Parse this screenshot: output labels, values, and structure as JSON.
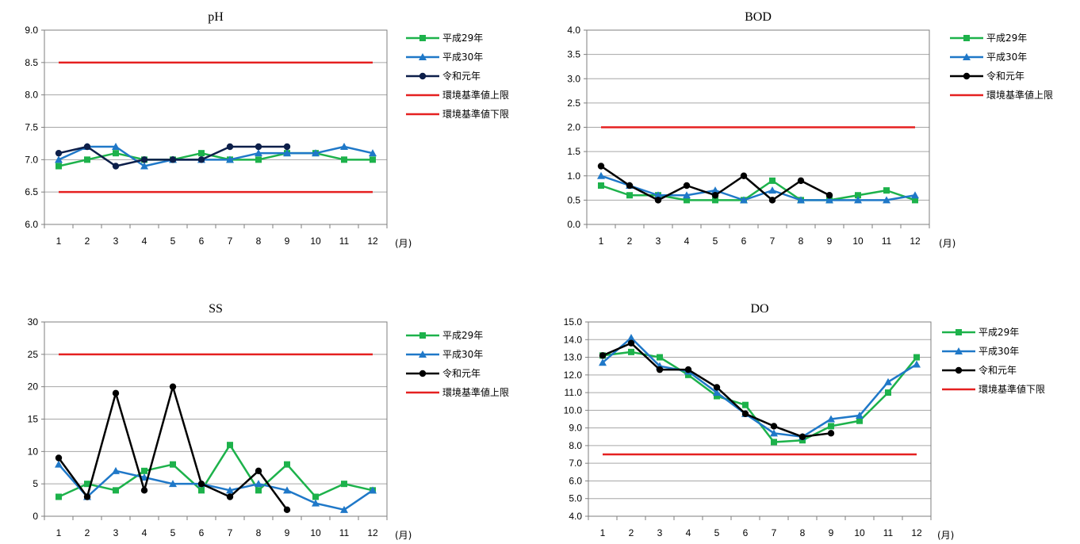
{
  "months": [
    "1",
    "2",
    "3",
    "4",
    "5",
    "6",
    "7",
    "8",
    "9",
    "10",
    "11",
    "12"
  ],
  "month_unit": "(月)",
  "colors": {
    "h29": "#1db24b",
    "h30": "#1f78c8",
    "r1": "#000000",
    "r1_ph": "#0d1f4a",
    "limit": "#e52020",
    "grid": "#a6a6a6"
  },
  "chart_data": [
    {
      "id": "ph",
      "type": "line",
      "title": "pH",
      "ylim": [
        6.0,
        9.0
      ],
      "ystep": 0.5,
      "ydecimals": 1,
      "series": [
        {
          "name": "平成29年",
          "marker": "square",
          "color": "#1db24b",
          "values": [
            6.9,
            7.0,
            7.1,
            7.0,
            7.0,
            7.1,
            7.0,
            7.0,
            7.1,
            7.1,
            7.0,
            7.0
          ]
        },
        {
          "name": "平成30年",
          "marker": "triangle",
          "color": "#1f78c8",
          "values": [
            7.0,
            7.2,
            7.2,
            6.9,
            7.0,
            7.0,
            7.0,
            7.1,
            7.1,
            7.1,
            7.2,
            7.1
          ]
        },
        {
          "name": "令和元年",
          "marker": "circle",
          "color": "#0d1f4a",
          "values": [
            7.1,
            7.2,
            6.9,
            7.0,
            7.0,
            7.0,
            7.2,
            7.2,
            7.2,
            null,
            null,
            null
          ]
        },
        {
          "name": "環境基準値上限",
          "marker": "none",
          "color": "#e52020",
          "values": [
            8.5,
            8.5,
            8.5,
            8.5,
            8.5,
            8.5,
            8.5,
            8.5,
            8.5,
            8.5,
            8.5,
            8.5
          ]
        },
        {
          "name": "環境基準値下限",
          "marker": "none",
          "color": "#e52020",
          "values": [
            6.5,
            6.5,
            6.5,
            6.5,
            6.5,
            6.5,
            6.5,
            6.5,
            6.5,
            6.5,
            6.5,
            6.5
          ]
        }
      ]
    },
    {
      "id": "bod",
      "type": "line",
      "title": "BOD",
      "ylim": [
        0.0,
        4.0
      ],
      "ystep": 0.5,
      "ydecimals": 1,
      "series": [
        {
          "name": "平成29年",
          "marker": "square",
          "color": "#1db24b",
          "values": [
            0.8,
            0.6,
            0.6,
            0.5,
            0.5,
            0.5,
            0.9,
            0.5,
            0.5,
            0.6,
            0.7,
            0.5
          ]
        },
        {
          "name": "平成30年",
          "marker": "triangle",
          "color": "#1f78c8",
          "values": [
            1.0,
            0.8,
            0.6,
            0.6,
            0.7,
            0.5,
            0.7,
            0.5,
            0.5,
            0.5,
            0.5,
            0.6
          ]
        },
        {
          "name": "令和元年",
          "marker": "circle",
          "color": "#000000",
          "values": [
            1.2,
            0.8,
            0.5,
            0.8,
            0.6,
            1.0,
            0.5,
            0.9,
            0.6,
            null,
            null,
            null
          ]
        },
        {
          "name": "環境基準値上限",
          "marker": "none",
          "color": "#e52020",
          "values": [
            2.0,
            2.0,
            2.0,
            2.0,
            2.0,
            2.0,
            2.0,
            2.0,
            2.0,
            2.0,
            2.0,
            2.0
          ]
        }
      ]
    },
    {
      "id": "ss",
      "type": "line",
      "title": "SS",
      "ylim": [
        0,
        30
      ],
      "ystep": 5,
      "ydecimals": 0,
      "series": [
        {
          "name": "平成29年",
          "marker": "square",
          "color": "#1db24b",
          "values": [
            3,
            5,
            4,
            7,
            8,
            4,
            11,
            4,
            8,
            3,
            5,
            4
          ]
        },
        {
          "name": "平成30年",
          "marker": "triangle",
          "color": "#1f78c8",
          "values": [
            8,
            3,
            7,
            6,
            5,
            5,
            4,
            5,
            4,
            2,
            1,
            4
          ]
        },
        {
          "name": "令和元年",
          "marker": "circle",
          "color": "#000000",
          "values": [
            9,
            3,
            19,
            4,
            20,
            5,
            3,
            7,
            1,
            null,
            null,
            null
          ]
        },
        {
          "name": "環境基準値上限",
          "marker": "none",
          "color": "#e52020",
          "values": [
            25,
            25,
            25,
            25,
            25,
            25,
            25,
            25,
            25,
            25,
            25,
            25
          ]
        }
      ]
    },
    {
      "id": "do",
      "type": "line",
      "title": "DO",
      "ylim": [
        4.0,
        15.0
      ],
      "ystep": 1.0,
      "ydecimals": 1,
      "series": [
        {
          "name": "平成29年",
          "marker": "square",
          "color": "#1db24b",
          "values": [
            13.1,
            13.3,
            13.0,
            12.0,
            10.8,
            10.3,
            8.2,
            8.3,
            9.1,
            9.4,
            11.0,
            13.0
          ]
        },
        {
          "name": "平成30年",
          "marker": "triangle",
          "color": "#1f78c8",
          "values": [
            12.7,
            14.1,
            12.5,
            12.2,
            11.0,
            9.8,
            8.7,
            8.5,
            9.5,
            9.7,
            11.6,
            12.6
          ]
        },
        {
          "name": "令和元年",
          "marker": "circle",
          "color": "#000000",
          "values": [
            13.1,
            13.8,
            12.3,
            12.3,
            11.3,
            9.8,
            9.1,
            8.5,
            8.7,
            null,
            null,
            null
          ]
        },
        {
          "name": "環境基準値下限",
          "marker": "none",
          "color": "#e52020",
          "values": [
            7.5,
            7.5,
            7.5,
            7.5,
            7.5,
            7.5,
            7.5,
            7.5,
            7.5,
            7.5,
            7.5,
            7.5
          ]
        }
      ]
    }
  ]
}
